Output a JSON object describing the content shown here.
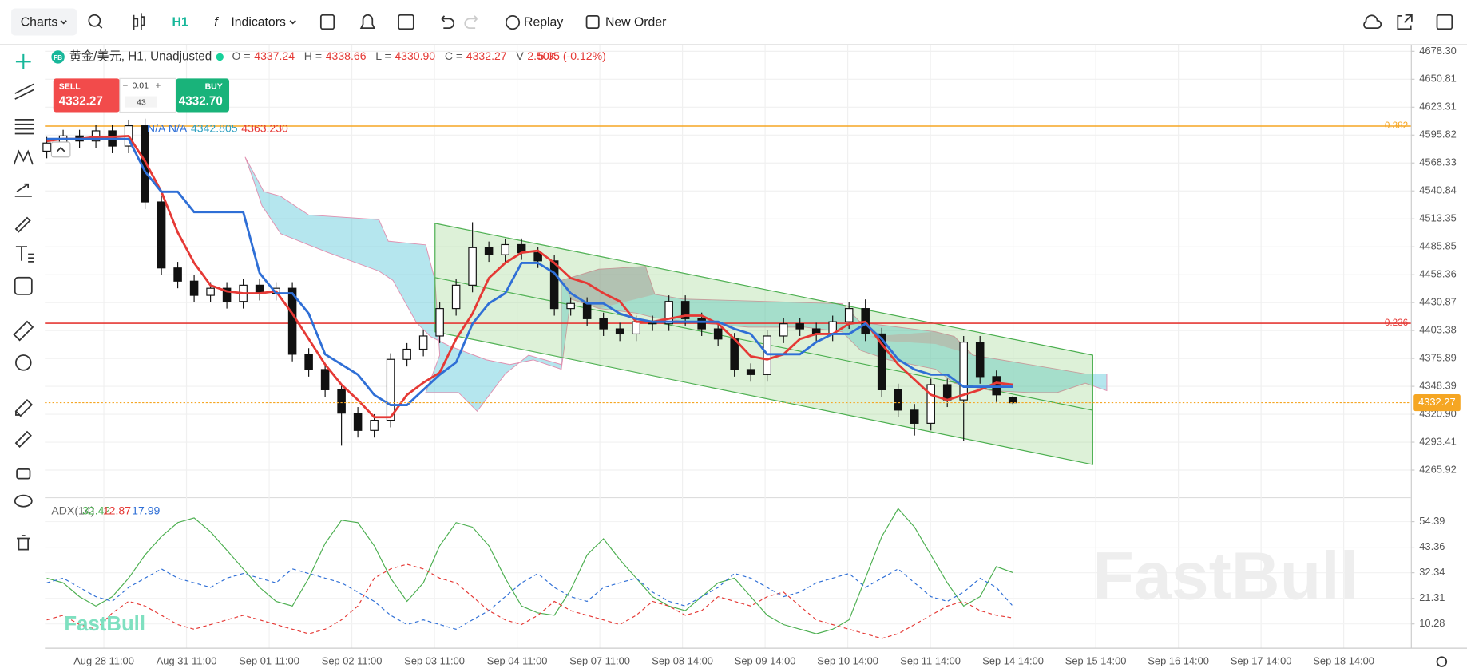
{
  "toolbar": {
    "chart_menu": "Charts",
    "interval": "H1",
    "indicators": "Indicators",
    "replay": "Replay",
    "new_order": "New Order"
  },
  "trade_panel": {
    "sell_label": "SELL",
    "sell_price": "4332.27",
    "lot": "0.01",
    "spread": "43",
    "buy_label": "BUY",
    "buy_price": "4332.70"
  },
  "legend": {
    "badge": "FB",
    "symbol": "黄金/美元, H1, Unadjusted",
    "ohlcv": [
      {
        "label": "O =",
        "value": "4337.24"
      },
      {
        "label": "H =",
        "value": "4338.66"
      },
      {
        "label": "L =",
        "value": "4330.90"
      },
      {
        "label": "C =",
        "value": "4332.27"
      },
      {
        "label": "V",
        "value": "2.50K"
      }
    ],
    "change": "-5.05 (-0.12%)",
    "ichimoku": [
      "N/A",
      "N/A",
      "4342.805",
      "4363.230"
    ]
  },
  "watermark": "FastBull",
  "chart_data": [
    {
      "type": "candlestick",
      "x_labels": [
        "Aug 28 11:00",
        "Aug 31 11:00",
        "Sep 01 11:00",
        "Sep 02 11:00",
        "Sep 03 11:00",
        "Sep 04 11:00",
        "Sep 07 11:00",
        "Sep 08 14:00",
        "Sep 09 14:00",
        "Sep 10 14:00",
        "Sep 11 14:00",
        "Sep 14 14:00",
        "Sep 15 14:00",
        "Sep 16 14:00",
        "Sep 17 14:00",
        "Sep 18 14:00"
      ],
      "ylim": [
        4239.2,
        4684.7
      ],
      "yticks": [
        {
          "value": 4678.3,
          "label": "4678.30"
        },
        4650.81,
        4623.31,
        4595.82,
        4568.33,
        4540.84,
        4513.35,
        4485.85,
        4458.36,
        4430.87,
        4403.38,
        4375.89,
        4348.39,
        {
          "value": 4320.9,
          "label": "4320.90"
        },
        4293.41,
        4265.92
      ],
      "grid": true,
      "up_color": "#ffffff",
      "down_color": "#111111",
      "last_color": "#f5a623",
      "open": [
        4580,
        4588,
        4595,
        4590,
        4600,
        4585,
        4605,
        4530,
        4465,
        4452,
        4438,
        4445,
        4432,
        4448,
        4440,
        4445,
        4380,
        4365,
        4345,
        4322,
        4305,
        4315,
        4375,
        4385,
        4398,
        4425,
        4448,
        4485,
        4478,
        4488,
        4480,
        4472,
        4425,
        4430,
        4415,
        4405,
        4400,
        4412,
        4410,
        4432,
        4415,
        4405,
        4395,
        4365,
        4360,
        4398,
        4410,
        4405,
        4400,
        4412,
        4425,
        4400,
        4345,
        4325,
        4312,
        4350,
        4335,
        4392,
        4358,
        4337.24
      ],
      "high": [
        4594,
        4601,
        4601,
        4606,
        4606,
        4611,
        4612,
        4536,
        4471,
        4458,
        4451,
        4451,
        4454,
        4454,
        4451,
        4451,
        4386,
        4371,
        4351,
        4328,
        4321,
        4381,
        4391,
        4404,
        4431,
        4454,
        4510,
        4491,
        4494,
        4494,
        4486,
        4478,
        4436,
        4436,
        4421,
        4411,
        4418,
        4418,
        4438,
        4438,
        4421,
        4411,
        4401,
        4371,
        4404,
        4416,
        4416,
        4411,
        4418,
        4431,
        4434,
        4406,
        4351,
        4331,
        4356,
        4356,
        4398,
        4398,
        4364,
        4338.66
      ],
      "low": [
        4573,
        4581,
        4583,
        4583,
        4578,
        4578,
        4523,
        4458,
        4445,
        4431,
        4431,
        4425,
        4425,
        4433,
        4433,
        4373,
        4358,
        4338,
        4290,
        4298,
        4298,
        4308,
        4368,
        4378,
        4391,
        4418,
        4441,
        4471,
        4471,
        4473,
        4465,
        4418,
        4418,
        4408,
        4398,
        4393,
        4393,
        4403,
        4403,
        4408,
        4398,
        4388,
        4358,
        4353,
        4353,
        4391,
        4398,
        4393,
        4393,
        4405,
        4393,
        4338,
        4318,
        4300,
        4305,
        4328,
        4295,
        4351,
        4333,
        4330.9
      ],
      "close": [
        4588,
        4595,
        4590,
        4600,
        4585,
        4605,
        4530,
        4465,
        4452,
        4438,
        4445,
        4432,
        4448,
        4440,
        4445,
        4380,
        4365,
        4345,
        4322,
        4305,
        4315,
        4375,
        4385,
        4398,
        4425,
        4448,
        4485,
        4478,
        4488,
        4480,
        4472,
        4425,
        4430,
        4415,
        4405,
        4400,
        4412,
        4410,
        4432,
        4415,
        4405,
        4395,
        4365,
        4360,
        4398,
        4410,
        4405,
        4400,
        4412,
        4425,
        4400,
        4345,
        4325,
        4312,
        4350,
        4335,
        4392,
        4358,
        4340,
        4332.27
      ],
      "lines": [
        {
          "color": "#e53935",
          "values": [
            4590,
            4592,
            4592,
            4594,
            4594,
            4595,
            4570,
            4540,
            4500,
            4470,
            4448,
            4442,
            4440,
            4440,
            4442,
            4420,
            4395,
            4370,
            4350,
            4335,
            4318,
            4318,
            4340,
            4352,
            4362,
            4395,
            4420,
            4455,
            4470,
            4480,
            4482,
            4470,
            4455,
            4450,
            4440,
            4432,
            4412,
            4412,
            4415,
            4418,
            4418,
            4410,
            4395,
            4378,
            4375,
            4380,
            4395,
            4400,
            4400,
            4410,
            4412,
            4390,
            4370,
            4355,
            4340,
            4335,
            4340,
            4345,
            4352,
            4350
          ]
        },
        {
          "color": "#2f6fd6",
          "values": [
            4592,
            4592,
            4592,
            4592,
            4592,
            4592,
            4560,
            4540,
            4540,
            4520,
            4520,
            4520,
            4520,
            4460,
            4440,
            4440,
            4420,
            4380,
            4370,
            4360,
            4340,
            4330,
            4330,
            4345,
            4360,
            4372,
            4410,
            4430,
            4440,
            4470,
            4470,
            4460,
            4440,
            4430,
            4430,
            4420,
            4415,
            4412,
            4412,
            4412,
            4412,
            4412,
            4405,
            4400,
            4380,
            4380,
            4380,
            4392,
            4400,
            4400,
            4410,
            4395,
            4375,
            4365,
            4360,
            4360,
            4348,
            4348,
            4348,
            4348
          ]
        }
      ],
      "levels": [
        {
          "value": 4604.7,
          "label": "0.382",
          "color": "#f5a623"
        },
        {
          "value": 4410.5,
          "label": "0.236",
          "color": "#e53935"
        }
      ]
    },
    {
      "type": "line",
      "title": "ADX(14)",
      "ylim": [
        0,
        62.9
      ],
      "yticks": [
        54.39,
        43.36,
        32.34,
        21.31,
        10.28
      ],
      "series": [
        {
          "color": "#4caf50",
          "dash": false,
          "values": [
            30,
            28,
            22,
            18,
            22,
            30,
            40,
            48,
            54,
            56,
            50,
            42,
            34,
            26,
            20,
            18,
            30,
            45,
            55,
            54,
            44,
            30,
            20,
            28,
            44,
            54,
            52,
            44,
            30,
            18,
            15,
            14,
            25,
            40,
            47,
            38,
            30,
            22,
            18,
            16,
            22,
            28,
            30,
            22,
            14,
            10,
            8,
            6,
            8,
            12,
            30,
            48,
            60,
            52,
            40,
            28,
            18,
            22,
            35,
            32.42
          ]
        },
        {
          "color": "#e53935",
          "dash": true,
          "values": [
            12,
            14,
            10,
            8,
            15,
            20,
            18,
            14,
            10,
            8,
            10,
            12,
            14,
            12,
            10,
            8,
            6,
            8,
            12,
            18,
            30,
            34,
            36,
            34,
            30,
            28,
            22,
            16,
            12,
            10,
            14,
            20,
            16,
            14,
            12,
            10,
            14,
            20,
            18,
            14,
            16,
            22,
            20,
            18,
            22,
            24,
            18,
            12,
            10,
            8,
            6,
            4,
            6,
            10,
            14,
            18,
            20,
            16,
            14,
            12.87
          ]
        },
        {
          "color": "#2f6fd6",
          "dash": true,
          "values": [
            28,
            30,
            26,
            22,
            20,
            26,
            30,
            34,
            30,
            28,
            26,
            30,
            32,
            30,
            28,
            34,
            32,
            30,
            28,
            24,
            20,
            14,
            10,
            12,
            10,
            8,
            12,
            16,
            22,
            28,
            32,
            26,
            22,
            20,
            26,
            28,
            30,
            24,
            20,
            18,
            22,
            26,
            32,
            30,
            26,
            22,
            24,
            28,
            30,
            32,
            26,
            30,
            34,
            28,
            22,
            20,
            24,
            30,
            26,
            17.99
          ]
        }
      ]
    }
  ]
}
